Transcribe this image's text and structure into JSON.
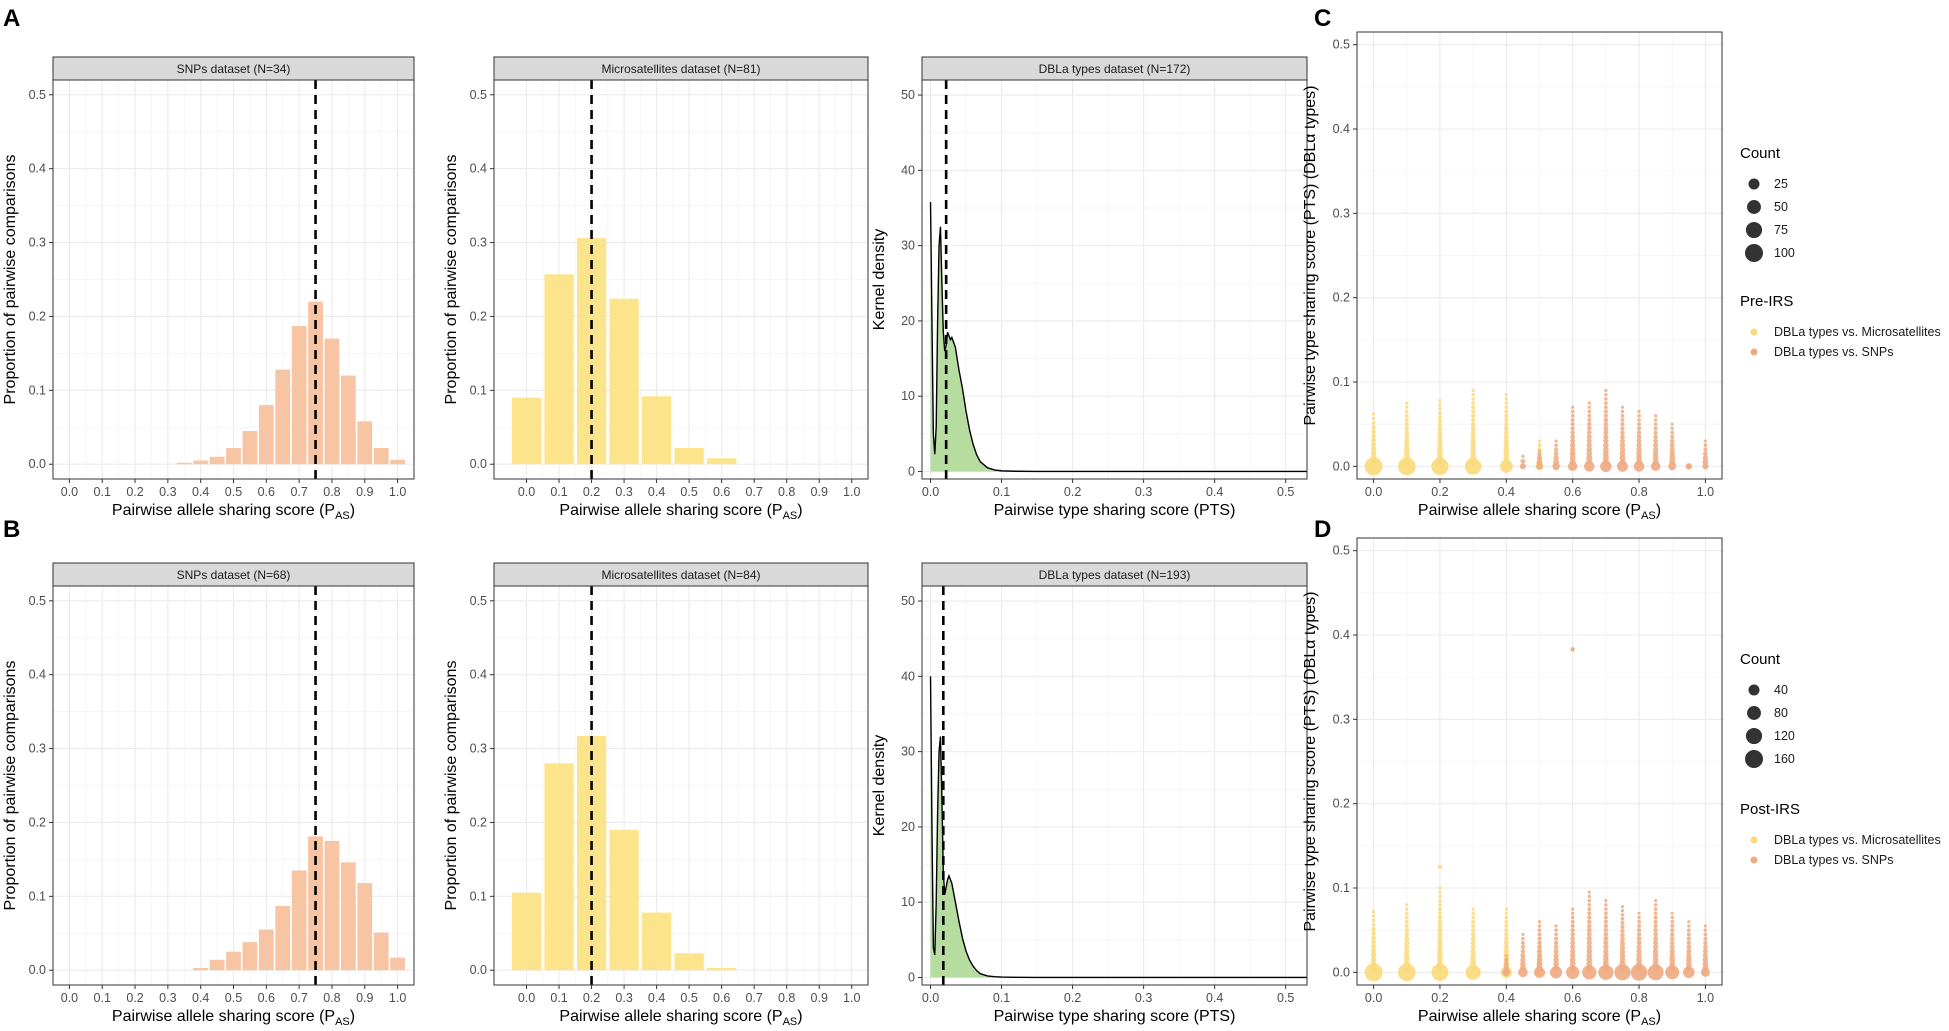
{
  "figure_labels": {
    "A": "A",
    "B": "B",
    "C": "C",
    "D": "D"
  },
  "colors": {
    "snps": "#f7c4a4",
    "microsatellites": "#fce48c",
    "density_fill": "#b7dca0",
    "dot_micro": "#fbd97a",
    "dot_snps": "#eeaa80",
    "vline": "#000000"
  },
  "chart_data": [
    {
      "id": "A1",
      "type": "bar",
      "row": "A",
      "strip": "SNPs dataset (N=34)",
      "xlabel": "Pairwise allele sharing score (P",
      "xlabel_sub": "AS",
      "ylabel": "Proportion of pairwise comparisons",
      "xlim": [
        -0.05,
        1.05
      ],
      "ylim": [
        -0.02,
        0.52
      ],
      "xticks": [
        0.0,
        0.1,
        0.2,
        0.3,
        0.4,
        0.5,
        0.6,
        0.7,
        0.8,
        0.9,
        1.0
      ],
      "xtick_labels": [
        "0.0",
        "0.1",
        "0.2",
        "0.3",
        "0.4",
        "0.5",
        "0.6",
        "0.7",
        "0.8",
        "0.9",
        "1.0"
      ],
      "yticks": [
        0.0,
        0.1,
        0.2,
        0.3,
        0.4,
        0.5
      ],
      "ytick_labels": [
        "0.0",
        "0.1",
        "0.2",
        "0.3",
        "0.4",
        "0.5"
      ],
      "bar_width": 0.045,
      "x": [
        0.35,
        0.4,
        0.45,
        0.5,
        0.55,
        0.6,
        0.65,
        0.7,
        0.75,
        0.8,
        0.85,
        0.9,
        0.95,
        1.0
      ],
      "values": [
        0.002,
        0.005,
        0.01,
        0.022,
        0.045,
        0.08,
        0.128,
        0.187,
        0.22,
        0.17,
        0.12,
        0.058,
        0.022,
        0.006
      ],
      "color_key": "snps",
      "vline": 0.75
    },
    {
      "id": "A2",
      "type": "bar",
      "row": "A",
      "strip": "Microsatellites dataset (N=81)",
      "xlabel": "Pairwise allele sharing score (P",
      "xlabel_sub": "AS",
      "ylabel": "Proportion of pairwise comparisons",
      "xlim": [
        -0.1,
        1.05
      ],
      "ylim": [
        -0.02,
        0.52
      ],
      "xticks": [
        0.0,
        0.1,
        0.2,
        0.3,
        0.4,
        0.5,
        0.6,
        0.7,
        0.8,
        0.9,
        1.0
      ],
      "xtick_labels": [
        "0.0",
        "0.1",
        "0.2",
        "0.3",
        "0.4",
        "0.5",
        "0.6",
        "0.7",
        "0.8",
        "0.9",
        "1.0"
      ],
      "yticks": [
        0.0,
        0.1,
        0.2,
        0.3,
        0.4,
        0.5
      ],
      "ytick_labels": [
        "0.0",
        "0.1",
        "0.2",
        "0.3",
        "0.4",
        "0.5"
      ],
      "bar_width": 0.09,
      "x": [
        0.0,
        0.1,
        0.2,
        0.3,
        0.4,
        0.5,
        0.6
      ],
      "values": [
        0.09,
        0.257,
        0.306,
        0.224,
        0.092,
        0.022,
        0.008
      ],
      "color_key": "microsatellites",
      "vline": 0.2
    },
    {
      "id": "A3",
      "type": "area",
      "row": "A",
      "strip": "DBLa types dataset (N=172)",
      "xlabel": "Pairwise type sharing score (PTS)",
      "ylabel": "Kernel density",
      "xlim": [
        -0.012,
        0.53
      ],
      "ylim": [
        -1,
        52
      ],
      "xticks": [
        0.0,
        0.1,
        0.2,
        0.3,
        0.4,
        0.5
      ],
      "xtick_labels": [
        "0.0",
        "0.1",
        "0.2",
        "0.3",
        "0.4",
        "0.5"
      ],
      "yticks": [
        0,
        10,
        20,
        30,
        40,
        50
      ],
      "ytick_labels": [
        "0",
        "10",
        "20",
        "30",
        "40",
        "50"
      ],
      "x": [
        0.0,
        0.002,
        0.004,
        0.006,
        0.008,
        0.01,
        0.012,
        0.014,
        0.016,
        0.018,
        0.02,
        0.022,
        0.024,
        0.026,
        0.028,
        0.03,
        0.035,
        0.04,
        0.045,
        0.05,
        0.055,
        0.06,
        0.065,
        0.07,
        0.08,
        0.09,
        0.1,
        0.12,
        0.15,
        0.2,
        0.3,
        0.4,
        0.53
      ],
      "values": [
        35.8,
        20.0,
        5.0,
        2.3,
        6.0,
        20.0,
        30.0,
        32.5,
        25.0,
        18.5,
        16.0,
        16.8,
        18.5,
        18.0,
        17.5,
        17.8,
        16.5,
        13.5,
        11.0,
        8.0,
        5.5,
        3.6,
        2.2,
        1.3,
        0.5,
        0.2,
        0.08,
        0.03,
        0.01,
        0.0,
        0.0,
        0.0,
        0.0
      ],
      "color_key": "density_fill",
      "vline": 0.022
    },
    {
      "id": "B1",
      "type": "bar",
      "row": "B",
      "strip": "SNPs dataset (N=68)",
      "xlabel": "Pairwise allele sharing score (P",
      "xlabel_sub": "AS",
      "ylabel": "Proportion of pairwise comparisons",
      "xlim": [
        -0.05,
        1.05
      ],
      "ylim": [
        -0.02,
        0.52
      ],
      "xticks": [
        0.0,
        0.1,
        0.2,
        0.3,
        0.4,
        0.5,
        0.6,
        0.7,
        0.8,
        0.9,
        1.0
      ],
      "xtick_labels": [
        "0.0",
        "0.1",
        "0.2",
        "0.3",
        "0.4",
        "0.5",
        "0.6",
        "0.7",
        "0.8",
        "0.9",
        "1.0"
      ],
      "yticks": [
        0.0,
        0.1,
        0.2,
        0.3,
        0.4,
        0.5
      ],
      "ytick_labels": [
        "0.0",
        "0.1",
        "0.2",
        "0.3",
        "0.4",
        "0.5"
      ],
      "bar_width": 0.045,
      "x": [
        0.4,
        0.45,
        0.5,
        0.55,
        0.6,
        0.65,
        0.7,
        0.75,
        0.8,
        0.85,
        0.9,
        0.95,
        1.0
      ],
      "values": [
        0.003,
        0.014,
        0.025,
        0.038,
        0.055,
        0.087,
        0.135,
        0.181,
        0.175,
        0.146,
        0.118,
        0.051,
        0.017
      ],
      "color_key": "snps",
      "vline": 0.75
    },
    {
      "id": "B2",
      "type": "bar",
      "row": "B",
      "strip": "Microsatellites dataset (N=84)",
      "xlabel": "Pairwise allele sharing score (P",
      "xlabel_sub": "AS",
      "ylabel": "Proportion of pairwise comparisons",
      "xlim": [
        -0.1,
        1.05
      ],
      "ylim": [
        -0.02,
        0.52
      ],
      "xticks": [
        0.0,
        0.1,
        0.2,
        0.3,
        0.4,
        0.5,
        0.6,
        0.7,
        0.8,
        0.9,
        1.0
      ],
      "xtick_labels": [
        "0.0",
        "0.1",
        "0.2",
        "0.3",
        "0.4",
        "0.5",
        "0.6",
        "0.7",
        "0.8",
        "0.9",
        "1.0"
      ],
      "yticks": [
        0.0,
        0.1,
        0.2,
        0.3,
        0.4,
        0.5
      ],
      "ytick_labels": [
        "0.0",
        "0.1",
        "0.2",
        "0.3",
        "0.4",
        "0.5"
      ],
      "bar_width": 0.09,
      "x": [
        0.0,
        0.1,
        0.2,
        0.3,
        0.4,
        0.5,
        0.6
      ],
      "values": [
        0.105,
        0.28,
        0.317,
        0.19,
        0.078,
        0.023,
        0.003
      ],
      "color_key": "microsatellites",
      "vline": 0.2
    },
    {
      "id": "B3",
      "type": "area",
      "row": "B",
      "strip": "DBLa types dataset (N=193)",
      "xlabel": "Pairwise type sharing score (PTS)",
      "ylabel": "Kernel density",
      "xlim": [
        -0.012,
        0.53
      ],
      "ylim": [
        -1,
        52
      ],
      "xticks": [
        0.0,
        0.1,
        0.2,
        0.3,
        0.4,
        0.5
      ],
      "xtick_labels": [
        "0.0",
        "0.1",
        "0.2",
        "0.3",
        "0.4",
        "0.5"
      ],
      "yticks": [
        0,
        10,
        20,
        30,
        40,
        50
      ],
      "ytick_labels": [
        "0",
        "10",
        "20",
        "30",
        "40",
        "50"
      ],
      "x": [
        0.0,
        0.002,
        0.004,
        0.006,
        0.008,
        0.01,
        0.012,
        0.014,
        0.016,
        0.018,
        0.02,
        0.022,
        0.024,
        0.026,
        0.028,
        0.03,
        0.035,
        0.04,
        0.045,
        0.05,
        0.055,
        0.06,
        0.065,
        0.07,
        0.08,
        0.09,
        0.1,
        0.12,
        0.15,
        0.2,
        0.3,
        0.4,
        0.53
      ],
      "values": [
        40.0,
        20.0,
        4.0,
        3.0,
        10.0,
        22.0,
        30.0,
        32.0,
        24.0,
        14.0,
        11.0,
        12.0,
        13.0,
        13.5,
        13.0,
        12.5,
        10.0,
        7.5,
        5.2,
        3.5,
        2.3,
        1.5,
        0.9,
        0.5,
        0.2,
        0.1,
        0.05,
        0.02,
        0.0,
        0.0,
        0.0,
        0.0,
        0.0
      ],
      "color_key": "density_fill",
      "vline": 0.018
    },
    {
      "id": "C",
      "type": "scatter",
      "row": "A",
      "xlabel": "Pairwise allele sharing score (P",
      "xlabel_sub": "AS",
      "ylabel": "Pairwise type sharing score (PTS) (DBLα types)",
      "xlim": [
        -0.05,
        1.05
      ],
      "ylim": [
        -0.015,
        0.515
      ],
      "xticks": [
        0.0,
        0.2,
        0.4,
        0.6,
        0.8,
        1.0
      ],
      "xtick_labels": [
        "0.0",
        "0.2",
        "0.4",
        "0.6",
        "0.8",
        "1.0"
      ],
      "yticks": [
        0.0,
        0.1,
        0.2,
        0.3,
        0.4,
        0.5
      ],
      "ytick_labels": [
        "0.0",
        "0.1",
        "0.2",
        "0.3",
        "0.4",
        "0.5"
      ],
      "legend_count_title": "Count",
      "legend_counts": [
        25,
        50,
        75,
        100
      ],
      "legend_group_title": "Pre-IRS",
      "legend_groups": [
        "DBLa types vs. Microsatellites",
        "DBLa types vs. SNPs"
      ],
      "columns": [
        {
          "group": 0,
          "x": 0.0,
          "max": 0.062,
          "count": 100
        },
        {
          "group": 0,
          "x": 0.1,
          "max": 0.075,
          "count": 95
        },
        {
          "group": 0,
          "x": 0.2,
          "max": 0.078,
          "count": 90
        },
        {
          "group": 0,
          "x": 0.3,
          "max": 0.09,
          "count": 80
        },
        {
          "group": 0,
          "x": 0.4,
          "max": 0.085,
          "count": 40
        },
        {
          "group": 0,
          "x": 0.5,
          "max": 0.03,
          "count": 8
        },
        {
          "group": 1,
          "x": 0.45,
          "max": 0.012,
          "count": 2
        },
        {
          "group": 1,
          "x": 0.5,
          "max": 0.018,
          "count": 3
        },
        {
          "group": 1,
          "x": 0.55,
          "max": 0.03,
          "count": 6
        },
        {
          "group": 1,
          "x": 0.6,
          "max": 0.07,
          "count": 15
        },
        {
          "group": 1,
          "x": 0.65,
          "max": 0.075,
          "count": 22
        },
        {
          "group": 1,
          "x": 0.7,
          "max": 0.09,
          "count": 28
        },
        {
          "group": 1,
          "x": 0.75,
          "max": 0.07,
          "count": 25
        },
        {
          "group": 1,
          "x": 0.8,
          "max": 0.065,
          "count": 22
        },
        {
          "group": 1,
          "x": 0.85,
          "max": 0.06,
          "count": 15
        },
        {
          "group": 1,
          "x": 0.9,
          "max": 0.05,
          "count": 8
        },
        {
          "group": 1,
          "x": 0.95,
          "max": 0.0,
          "count": 3
        },
        {
          "group": 1,
          "x": 1.0,
          "max": 0.03,
          "count": 2
        }
      ],
      "outliers": []
    },
    {
      "id": "D",
      "type": "scatter",
      "row": "B",
      "xlabel": "Pairwise allele sharing score (P",
      "xlabel_sub": "AS",
      "ylabel": "Pairwise type sharing score (PTS) (DBLα types)",
      "xlim": [
        -0.05,
        1.05
      ],
      "ylim": [
        -0.015,
        0.515
      ],
      "xticks": [
        0.0,
        0.2,
        0.4,
        0.6,
        0.8,
        1.0
      ],
      "xtick_labels": [
        "0.0",
        "0.2",
        "0.4",
        "0.6",
        "0.8",
        "1.0"
      ],
      "yticks": [
        0.0,
        0.1,
        0.2,
        0.3,
        0.4,
        0.5
      ],
      "ytick_labels": [
        "0.0",
        "0.1",
        "0.2",
        "0.3",
        "0.4",
        "0.5"
      ],
      "legend_count_title": "Count",
      "legend_counts": [
        40,
        80,
        120,
        160
      ],
      "legend_group_title": "Post-IRS",
      "legend_groups": [
        "DBLa types vs. Microsatellites",
        "DBLa types vs. SNPs"
      ],
      "columns": [
        {
          "group": 0,
          "x": 0.0,
          "max": 0.072,
          "count": 160
        },
        {
          "group": 0,
          "x": 0.1,
          "max": 0.08,
          "count": 150
        },
        {
          "group": 0,
          "x": 0.2,
          "max": 0.1,
          "count": 140
        },
        {
          "group": 0,
          "x": 0.3,
          "max": 0.075,
          "count": 100
        },
        {
          "group": 0,
          "x": 0.4,
          "max": 0.075,
          "count": 45
        },
        {
          "group": 0,
          "x": 0.5,
          "max": 0.035,
          "count": 10
        },
        {
          "group": 1,
          "x": 0.4,
          "max": 0.02,
          "count": 10
        },
        {
          "group": 1,
          "x": 0.45,
          "max": 0.045,
          "count": 25
        },
        {
          "group": 1,
          "x": 0.5,
          "max": 0.06,
          "count": 40
        },
        {
          "group": 1,
          "x": 0.55,
          "max": 0.055,
          "count": 55
        },
        {
          "group": 1,
          "x": 0.6,
          "max": 0.075,
          "count": 70
        },
        {
          "group": 1,
          "x": 0.65,
          "max": 0.095,
          "count": 85
        },
        {
          "group": 1,
          "x": 0.7,
          "max": 0.085,
          "count": 100
        },
        {
          "group": 1,
          "x": 0.75,
          "max": 0.078,
          "count": 120
        },
        {
          "group": 1,
          "x": 0.8,
          "max": 0.07,
          "count": 130
        },
        {
          "group": 1,
          "x": 0.85,
          "max": 0.085,
          "count": 115
        },
        {
          "group": 1,
          "x": 0.9,
          "max": 0.07,
          "count": 80
        },
        {
          "group": 1,
          "x": 0.95,
          "max": 0.06,
          "count": 45
        },
        {
          "group": 1,
          "x": 1.0,
          "max": 0.055,
          "count": 20
        }
      ],
      "outliers": [
        {
          "group": 1,
          "x": 0.6,
          "y": 0.383
        },
        {
          "group": 0,
          "x": 0.2,
          "y": 0.125
        }
      ]
    }
  ]
}
